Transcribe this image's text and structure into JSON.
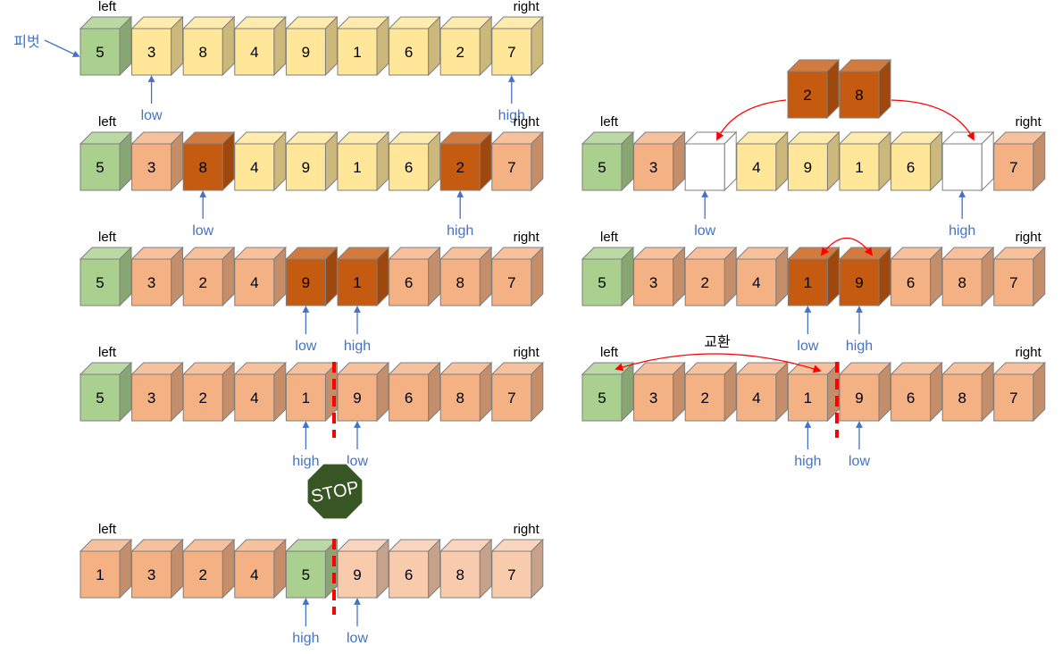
{
  "labels": {
    "left": "left",
    "right": "right",
    "low": "low",
    "high": "high",
    "pivot": "피벗",
    "swap": "교환",
    "stop": "STOP"
  },
  "colors": {
    "pivot": "#a9d08e",
    "yellow": "#ffe699",
    "orange": "#f4b183",
    "dark": "#c55a11",
    "light": "#f8cbad",
    "white": "#ffffff",
    "arrow_blue": "#4472c4",
    "label_blue": "#4472c4",
    "red": "#ff0000",
    "stop": "#375623"
  },
  "rows": [
    {
      "id": "r1",
      "values": [
        "5",
        "3",
        "8",
        "4",
        "9",
        "1",
        "6",
        "2",
        "7"
      ],
      "colors": [
        "pivot",
        "yellow",
        "yellow",
        "yellow",
        "yellow",
        "yellow",
        "yellow",
        "yellow",
        "yellow"
      ],
      "pointers": [
        {
          "label": "low",
          "cell": 1
        },
        {
          "label": "high",
          "cell": 8
        }
      ]
    },
    {
      "id": "r2",
      "values": [
        "5",
        "3",
        "8",
        "4",
        "9",
        "1",
        "6",
        "2",
        "7"
      ],
      "colors": [
        "pivot",
        "orange",
        "dark",
        "yellow",
        "yellow",
        "yellow",
        "yellow",
        "dark",
        "orange"
      ],
      "pointers": [
        {
          "label": "low",
          "cell": 2
        },
        {
          "label": "high",
          "cell": 7
        }
      ]
    },
    {
      "id": "r3",
      "values": [
        "5",
        "3",
        "2",
        "4",
        "9",
        "1",
        "6",
        "8",
        "7"
      ],
      "colors": [
        "pivot",
        "orange",
        "orange",
        "orange",
        "dark",
        "dark",
        "orange",
        "orange",
        "orange"
      ],
      "pointers": [
        {
          "label": "low",
          "cell": 4
        },
        {
          "label": "high",
          "cell": 5
        }
      ]
    },
    {
      "id": "r4",
      "values": [
        "5",
        "3",
        "2",
        "4",
        "1",
        "9",
        "6",
        "8",
        "7"
      ],
      "colors": [
        "pivot",
        "orange",
        "orange",
        "orange",
        "orange",
        "orange",
        "orange",
        "orange",
        "orange"
      ],
      "pointers": [
        {
          "label": "high",
          "cell": 4
        },
        {
          "label": "low",
          "cell": 5
        }
      ]
    },
    {
      "id": "r5",
      "values": [
        "1",
        "3",
        "2",
        "4",
        "5",
        "9",
        "6",
        "8",
        "7"
      ],
      "colors": [
        "orange",
        "orange",
        "orange",
        "orange",
        "pivot",
        "light",
        "light",
        "light",
        "light"
      ],
      "pointers": [
        {
          "label": "high",
          "cell": 4
        },
        {
          "label": "low",
          "cell": 5
        }
      ]
    },
    {
      "id": "r6",
      "values": [
        "5",
        "3",
        "",
        "4",
        "9",
        "1",
        "6",
        "",
        "7"
      ],
      "colors": [
        "pivot",
        "orange",
        "white",
        "yellow",
        "yellow",
        "yellow",
        "yellow",
        "white",
        "orange"
      ],
      "pointers": [
        {
          "label": "low",
          "cell": 2
        },
        {
          "label": "high",
          "cell": 7
        }
      ]
    },
    {
      "id": "r7",
      "values": [
        "5",
        "3",
        "2",
        "4",
        "1",
        "9",
        "6",
        "8",
        "7"
      ],
      "colors": [
        "pivot",
        "orange",
        "orange",
        "orange",
        "dark",
        "dark",
        "orange",
        "orange",
        "orange"
      ],
      "pointers": [
        {
          "label": "low",
          "cell": 4
        },
        {
          "label": "high",
          "cell": 5
        }
      ]
    },
    {
      "id": "r8",
      "values": [
        "5",
        "3",
        "2",
        "4",
        "1",
        "9",
        "6",
        "8",
        "7"
      ],
      "colors": [
        "pivot",
        "orange",
        "orange",
        "orange",
        "orange",
        "orange",
        "orange",
        "orange",
        "orange"
      ],
      "pointers": [
        {
          "label": "high",
          "cell": 4
        },
        {
          "label": "low",
          "cell": 5
        }
      ]
    }
  ],
  "floating": {
    "values": [
      "2",
      "8"
    ],
    "color": "dark"
  }
}
